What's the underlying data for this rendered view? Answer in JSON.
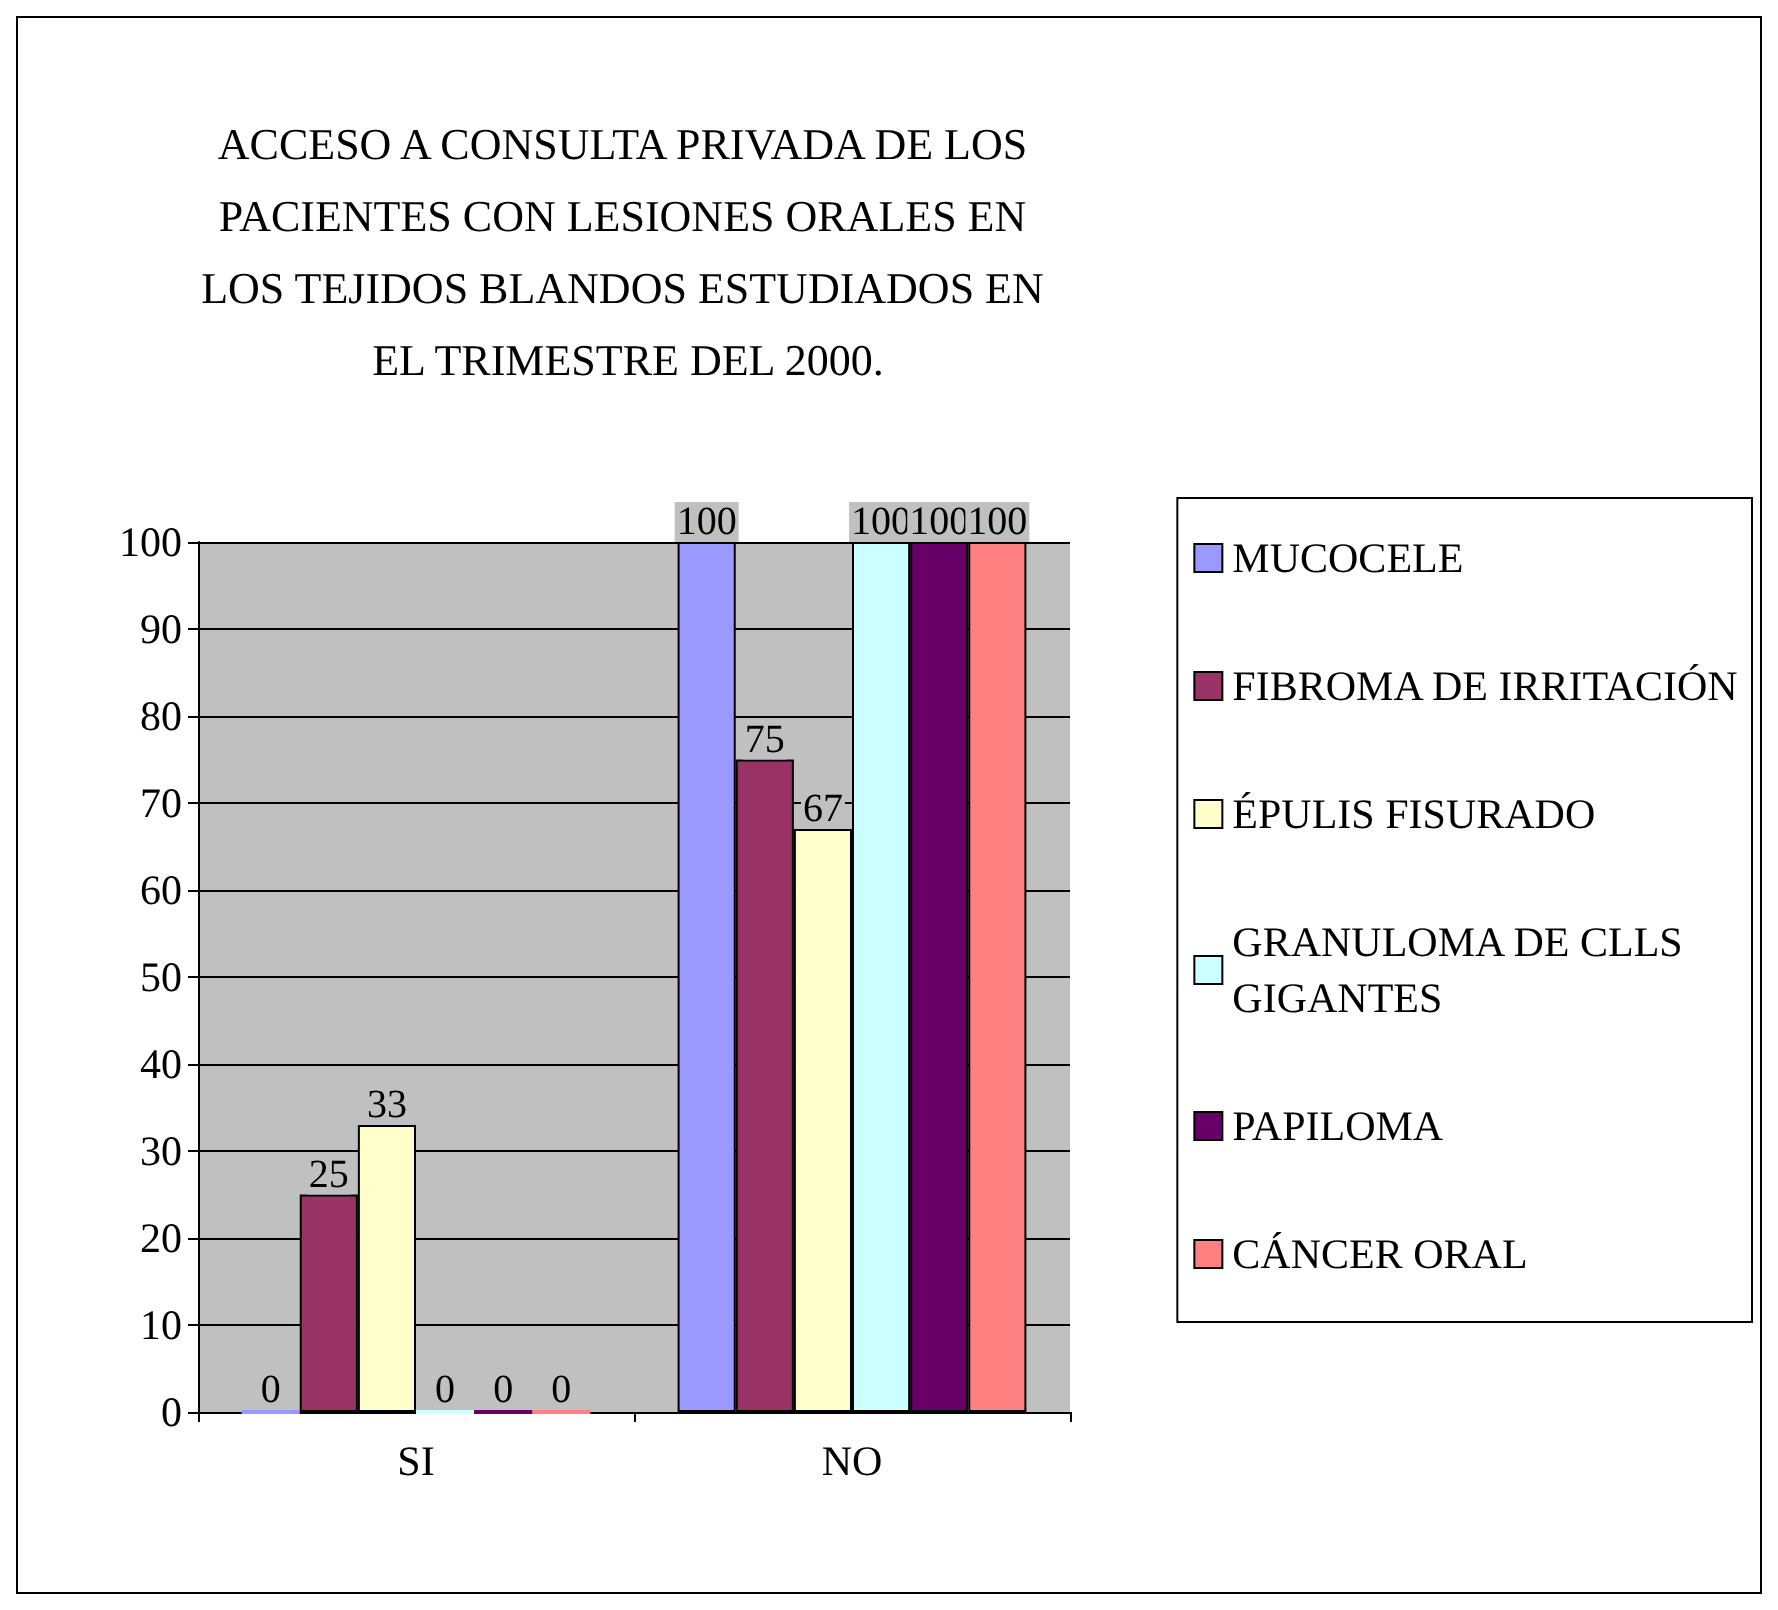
{
  "chart_data": {
    "type": "bar",
    "title": "ACCESO A CONSULTA PRIVADA DE LOS PACIENTES CON LESIONES ORALES EN LOS TEJIDOS BLANDOS ESTUDIADOS EN EL TRIMESTRE DEL 2000.",
    "categories": [
      "SI",
      "NO"
    ],
    "series": [
      {
        "name": "MUCOCELE",
        "color": "#9999ff",
        "values": [
          0,
          100
        ]
      },
      {
        "name": "FIBROMA DE IRRITACIÓN",
        "color": "#993366",
        "values": [
          25,
          75
        ]
      },
      {
        "name": "ÉPULIS FISURADO",
        "color": "#ffffcc",
        "values": [
          33,
          67
        ]
      },
      {
        "name": "GRANULOMA DE CLLS GIGANTES",
        "color": "#ccffff",
        "values": [
          0,
          100
        ]
      },
      {
        "name": "PAPILOMA",
        "color": "#660066",
        "values": [
          0,
          100
        ]
      },
      {
        "name": "CÁNCER ORAL",
        "color": "#ff8080",
        "values": [
          0,
          100
        ]
      }
    ],
    "ylim": [
      0,
      100
    ],
    "yticks": [
      0,
      10,
      20,
      30,
      40,
      50,
      60,
      70,
      80,
      90,
      100
    ],
    "grid": "y",
    "legend": "right",
    "data_labels": true
  }
}
